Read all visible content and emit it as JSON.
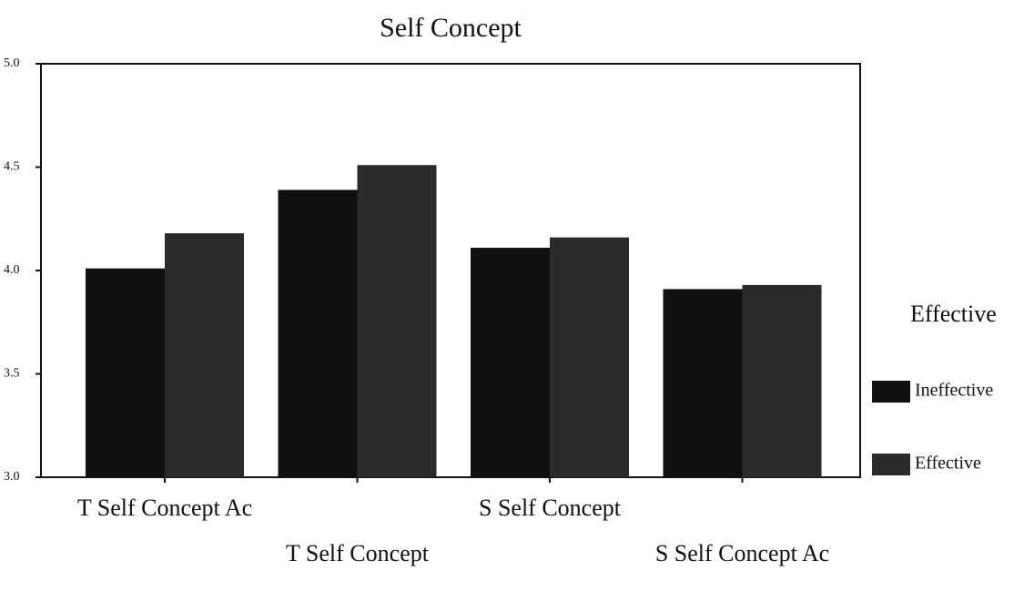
{
  "chart_data": {
    "type": "bar",
    "title": "Self Concept",
    "categories": [
      "T Self Concept Ac",
      "T Self Concept",
      "S Self Concept",
      "S Self Concept Ac"
    ],
    "series": [
      {
        "name": "Ineffective",
        "color": "#111111",
        "values": [
          4.01,
          4.39,
          4.11,
          3.91
        ]
      },
      {
        "name": "Effective",
        "color": "#2b2b2b",
        "values": [
          4.18,
          4.51,
          4.16,
          3.93
        ]
      }
    ],
    "legend_title": "Effective",
    "ylim": [
      3,
      5
    ],
    "yticks": [
      {
        "value": 3,
        "label": "3.0"
      },
      3.5,
      {
        "value": 4,
        "label": "4.0"
      },
      4.5,
      {
        "value": 5,
        "label": "5.0"
      }
    ],
    "grid": false,
    "legend_position": "right"
  }
}
